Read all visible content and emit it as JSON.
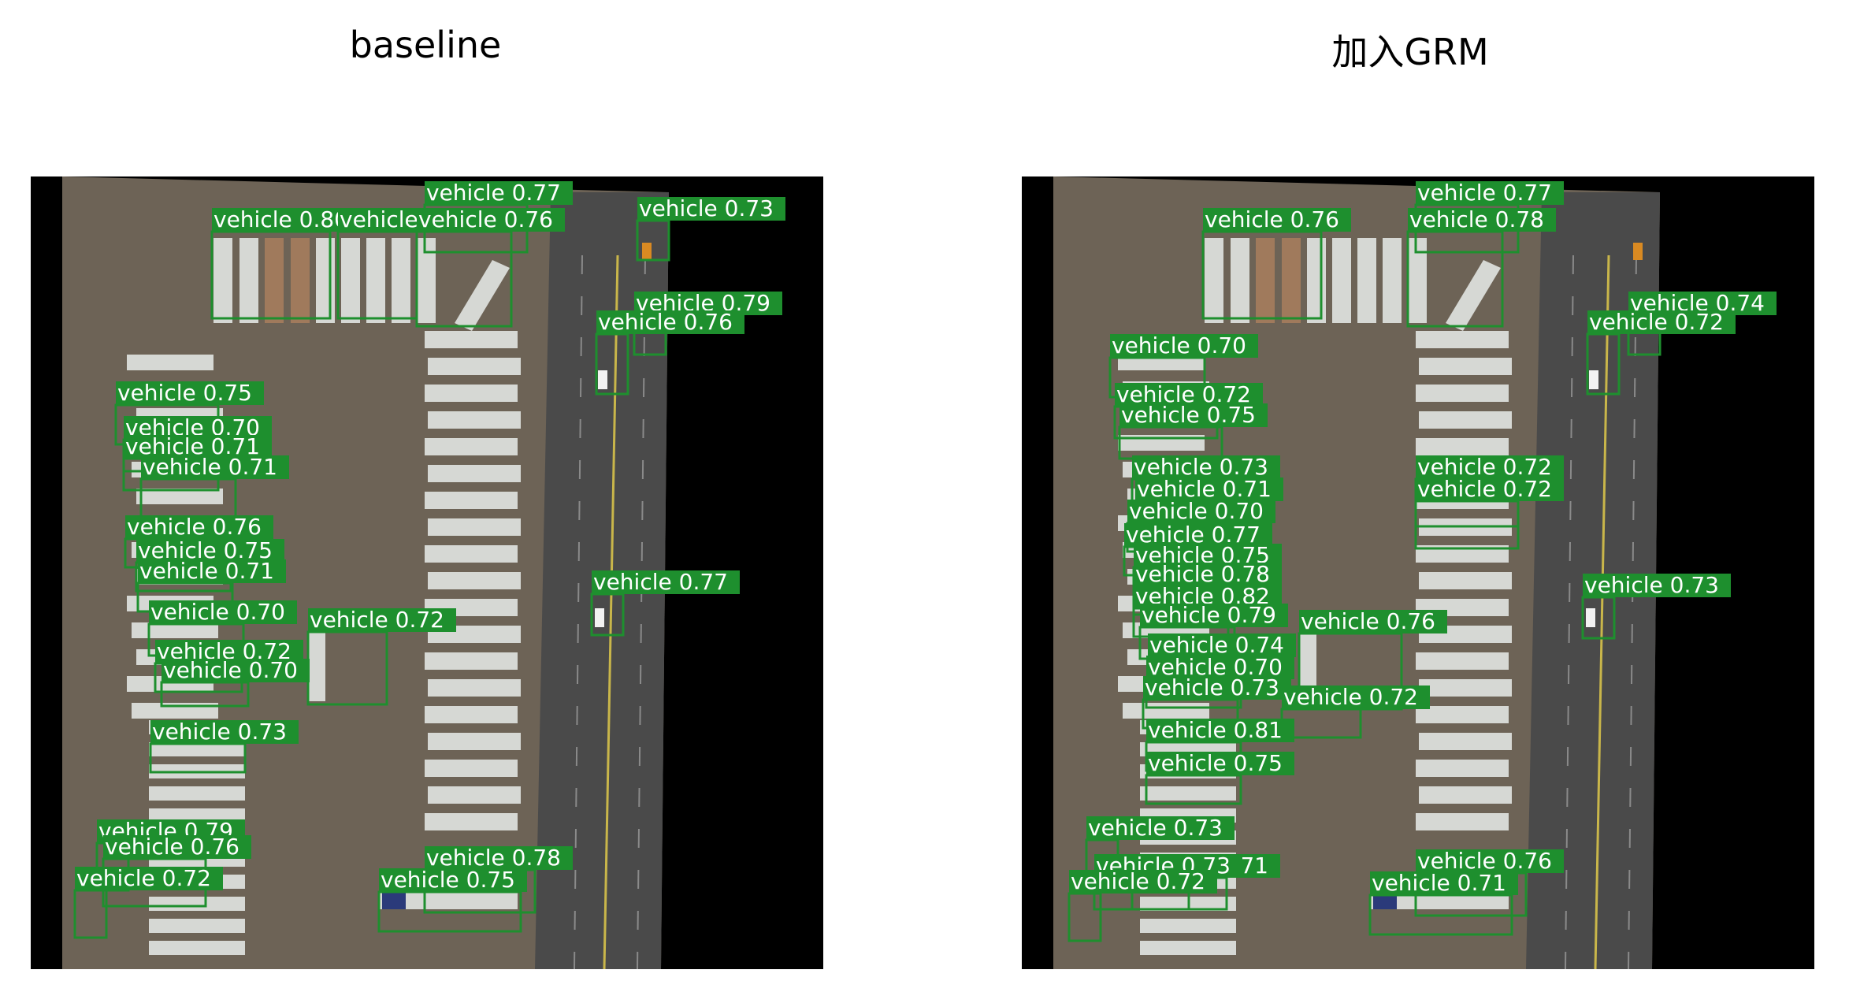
{
  "panels": [
    {
      "title": "baseline",
      "detections": [
        {
          "label": "vehicle",
          "score": "0.77"
        },
        {
          "label": "vehicle",
          "score": "0.73"
        },
        {
          "label": "vehicle",
          "score": "0.80"
        },
        {
          "label": "vehicle",
          "score": "0.77"
        },
        {
          "label": "vehicle",
          "score": "0.76"
        },
        {
          "label": "vehicle",
          "score": "0.79"
        },
        {
          "label": "vehicle",
          "score": "0.76"
        },
        {
          "label": "vehicle",
          "score": "0.75"
        },
        {
          "label": "vehicle",
          "score": "0.70"
        },
        {
          "label": "vehicle",
          "score": "0.71"
        },
        {
          "label": "vehicle",
          "score": "0.71"
        },
        {
          "label": "vehicle",
          "score": "0.76"
        },
        {
          "label": "vehicle",
          "score": "0.75"
        },
        {
          "label": "vehicle",
          "score": "0.71"
        },
        {
          "label": "vehicle",
          "score": "0.77"
        },
        {
          "label": "vehicle",
          "score": "0.70"
        },
        {
          "label": "vehicle",
          "score": "0.72"
        },
        {
          "label": "vehicle",
          "score": "0.72"
        },
        {
          "label": "vehicle",
          "score": "0.70"
        },
        {
          "label": "vehicle",
          "score": "0.73"
        },
        {
          "label": "vehicle",
          "score": "0.79"
        },
        {
          "label": "vehicle",
          "score": "0.78"
        },
        {
          "label": "vehicle",
          "score": "0.76"
        },
        {
          "label": "vehicle",
          "score": "0.75"
        },
        {
          "label": "vehicle",
          "score": "0.72"
        }
      ]
    },
    {
      "title": "加入GRM",
      "detections": [
        {
          "label": "vehicle",
          "score": "0.77"
        },
        {
          "label": "vehicle",
          "score": "0.76"
        },
        {
          "label": "vehicle",
          "score": "0.78"
        },
        {
          "label": "vehicle",
          "score": "0.74"
        },
        {
          "label": "vehicle",
          "score": "0.72"
        },
        {
          "label": "vehicle",
          "score": "0.70"
        },
        {
          "label": "vehicle",
          "score": "0.72"
        },
        {
          "label": "vehicle",
          "score": "0.75"
        },
        {
          "label": "vehicle",
          "score": "0.73"
        },
        {
          "label": "vehicle",
          "score": "0.71"
        },
        {
          "label": "vehicle",
          "score": "0.70"
        },
        {
          "label": "vehicle",
          "score": "0.77"
        },
        {
          "label": "vehicle",
          "score": "0.75"
        },
        {
          "label": "vehicle",
          "score": "0.72"
        },
        {
          "label": "vehicle",
          "score": "0.72"
        },
        {
          "label": "vehicle",
          "score": "0.78"
        },
        {
          "label": "vehicle",
          "score": "0.82"
        },
        {
          "label": "vehicle",
          "score": "0.79"
        },
        {
          "label": "vehicle",
          "score": "0.73"
        },
        {
          "label": "vehicle",
          "score": "0.74"
        },
        {
          "label": "vehicle",
          "score": "0.76"
        },
        {
          "label": "vehicle",
          "score": "0.70"
        },
        {
          "label": "vehicle",
          "score": "0.73"
        },
        {
          "label": "vehicle",
          "score": "0.72"
        },
        {
          "label": "vehicle",
          "score": "0.81"
        },
        {
          "label": "vehicle",
          "score": "0.75"
        },
        {
          "label": "vehicle",
          "score": "0.73"
        },
        {
          "label": "vehicle",
          "score": "0.71"
        },
        {
          "label": "vehicle",
          "score": "0.73"
        },
        {
          "label": "vehicle",
          "score": "0.76"
        },
        {
          "label": "vehicle",
          "score": "0.71"
        },
        {
          "label": "vehicle",
          "score": "0.72"
        }
      ]
    }
  ],
  "colors": {
    "box": "#1e8f2e",
    "label_bg": "#1e8f2e",
    "label_text": "#ffffff",
    "ground": "#6d6356",
    "road": "#4a4a4a",
    "trailer": "#d6d8d4"
  }
}
